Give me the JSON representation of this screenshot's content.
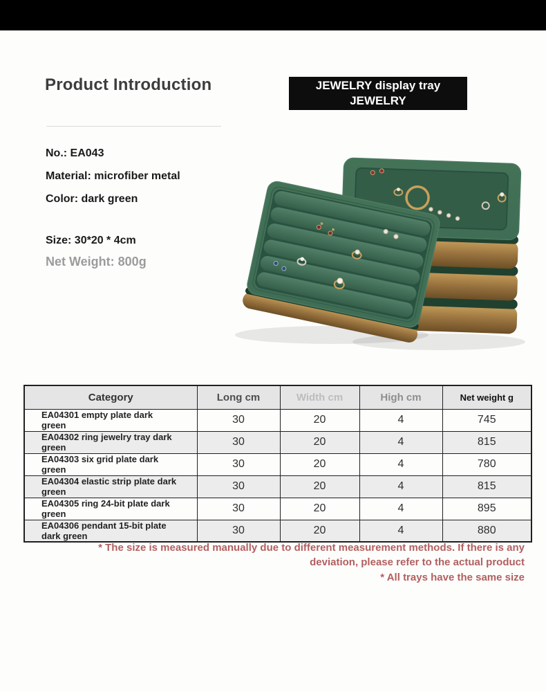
{
  "header": {
    "title": "Product Introduction",
    "badge_line1": "JEWELRY display tray",
    "badge_line2": "JEWELRY"
  },
  "specs": {
    "no": "No.: EA043",
    "material": "Material: microfiber metal",
    "color": "Color: dark green",
    "size": "Size: 30*20 * 4cm",
    "net_weight": "Net Weight: 800g"
  },
  "illustration": {
    "description": "Stack of three dark green jewelry display trays with brushed gold metal bases; a dark green ring tray with six elastic rows of rings and earrings leans against the stack; top tray holds a gold bangle, rings and ear studs"
  },
  "table": {
    "headers": [
      {
        "label": "Category",
        "color": "#333333"
      },
      {
        "label": "Long cm",
        "color": "#4d4d4d"
      },
      {
        "label": "Width cm",
        "color": "#bdbdbd"
      },
      {
        "label": "High cm",
        "color": "#8e8e8e"
      },
      {
        "label": "Net weight g",
        "color": "#111111"
      }
    ],
    "rows": [
      {
        "category": "EA04301 empty plate dark green",
        "long_cm": "30",
        "width_cm": "20",
        "high_cm": "4",
        "net_weight_g": "745"
      },
      {
        "category": "EA04302 ring jewelry tray dark green",
        "long_cm": "30",
        "width_cm": "20",
        "high_cm": "4",
        "net_weight_g": "815"
      },
      {
        "category": "EA04303 six grid plate dark green",
        "long_cm": "30",
        "width_cm": "20",
        "high_cm": "4",
        "net_weight_g": "780"
      },
      {
        "category": "EA04304 elastic strip plate dark green",
        "long_cm": "30",
        "width_cm": "20",
        "high_cm": "4",
        "net_weight_g": "815"
      },
      {
        "category": "EA04305 ring 24-bit plate dark green",
        "long_cm": "30",
        "width_cm": "20",
        "high_cm": "4",
        "net_weight_g": "895"
      },
      {
        "category": "EA04306 pendant 15-bit plate dark green",
        "long_cm": "30",
        "width_cm": "20",
        "high_cm": "4",
        "net_weight_g": "880"
      }
    ]
  },
  "footnotes": {
    "note1": "* The size is measured manually due to different measurement methods. If there is any deviation, please refer to the actual product",
    "note2": "* All trays have the same size"
  },
  "colors": {
    "top_bar": "#000000",
    "badge_bg": "#0d0d0d",
    "badge_text": "#ffffff",
    "heading_text": "#3d3d3d",
    "spec_text": "#1a1a1a",
    "net_weight_gray": "#9b9b9b",
    "table_border": "#1f1f1f",
    "table_header_bg": "#e5e5e5",
    "table_alt_row_bg": "#ececec",
    "footnote_red": "#b25f5f",
    "tray_green": "#3f6d55",
    "tray_green_dark": "#2c523f",
    "tray_gold": "#c9a05c",
    "tray_gold_dark": "#6d4f26"
  }
}
